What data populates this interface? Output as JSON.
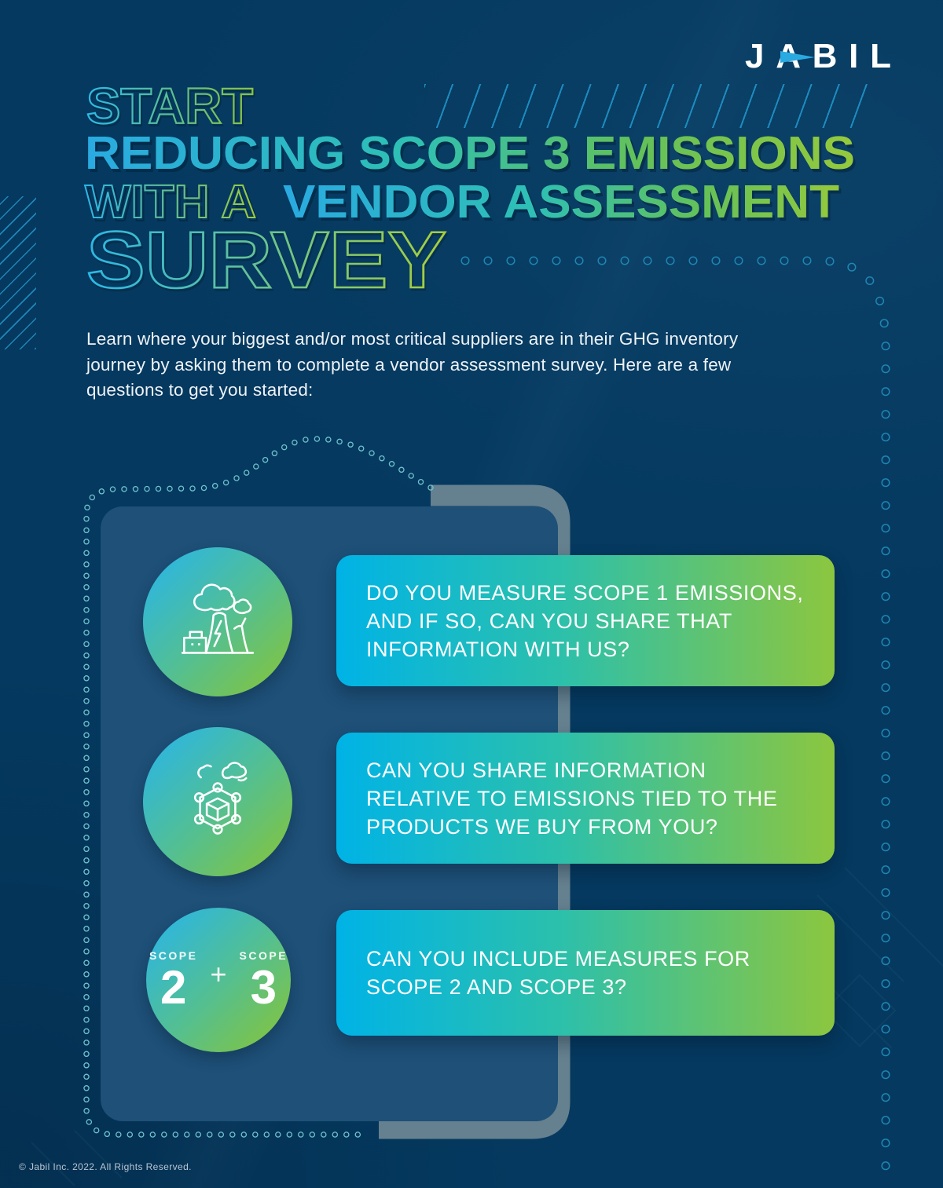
{
  "brand": {
    "logo_text": "JABIL"
  },
  "title": {
    "line1_outline": "START",
    "line2_filled": "REDUCING SCOPE 3 EMISSIONS",
    "line3_outline": "WITH A",
    "line3_filled": "VENDOR ASSESSMENT",
    "line4_outline": "SURVEY"
  },
  "intro": "Learn where your biggest and/or most critical suppliers are in their GHG inventory journey by asking them to complete a vendor assessment survey. Here are a few questions to get you started:",
  "questions": [
    {
      "icon": "power-plant-icon",
      "lines": [
        "DO YOU MEASURE SCOPE 1 EMISSIONS,",
        "AND IF SO, CAN YOU SHARE THAT",
        "INFORMATION WITH US?"
      ]
    },
    {
      "icon": "supply-chain-network-icon",
      "lines": [
        "CAN YOU SHARE INFORMATION",
        "RELATIVE TO EMISSIONS TIED TO THE",
        "PRODUCTS WE BUY FROM YOU?"
      ]
    },
    {
      "icon": "scope-2-plus-3-badge",
      "badge": {
        "label_left": "SCOPE",
        "value_left": "2",
        "plus": "+",
        "label_right": "SCOPE",
        "value_right": "3"
      },
      "lines": [
        "CAN YOU INCLUDE MEASURES FOR",
        "SCOPE 2 AND SCOPE 3?"
      ]
    }
  ],
  "footer": {
    "copyright": "© Jabil Inc. 2022. All Rights Reserved."
  },
  "colors": {
    "background_navy": "#05395F",
    "panel_blue": "#1E5078",
    "frame_gray": "#65808F",
    "accent_cyan": "#29ABE2",
    "accent_teal": "#2CC0AB",
    "accent_green": "#8CC63F",
    "dot_blue": "#1F86B4",
    "dot_teal": "#6FC3CF",
    "text_white": "#FFFFFF"
  }
}
